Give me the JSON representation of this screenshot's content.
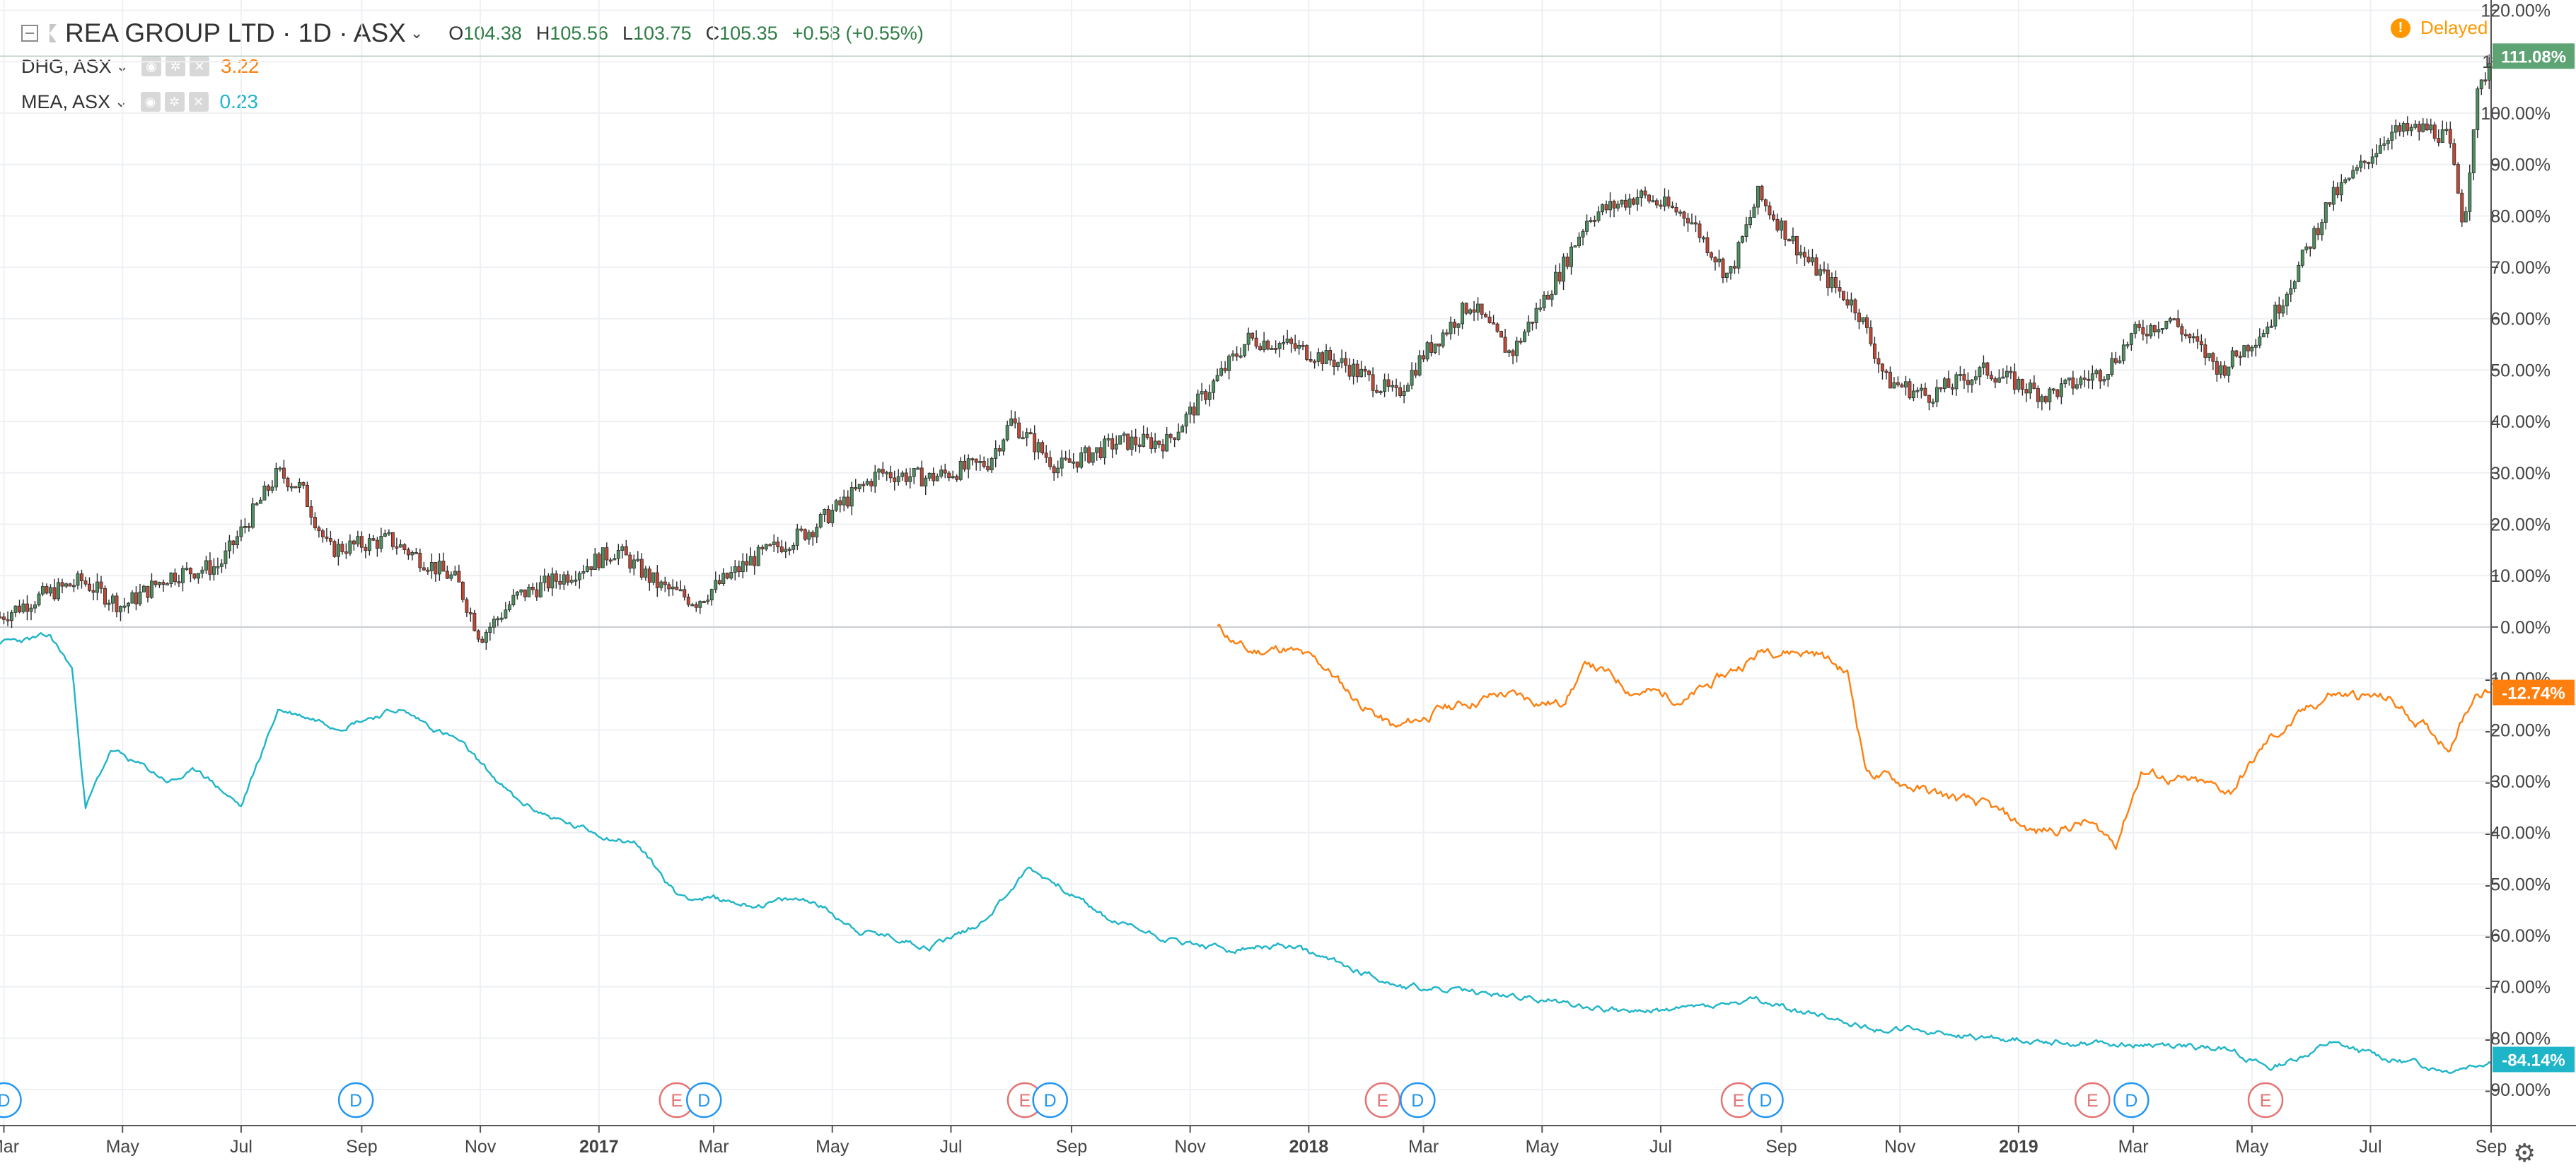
{
  "header": {
    "symbol_title": "REA GROUP LTD · 1D · ASX",
    "ohlc": {
      "o_label": "O",
      "o": "104.38",
      "h_label": "H",
      "h": "105.56",
      "l_label": "L",
      "l": "103.75",
      "c_label": "C",
      "c": "105.35",
      "change": "+0.58 (+0.55%)"
    },
    "compare": [
      {
        "label": "DHG, ASX",
        "value": "3.22",
        "color": "#ff7f0e"
      },
      {
        "label": "MEA, ASX",
        "value": "0.23",
        "color": "#1fb5c8"
      }
    ],
    "delayed_label": "Delayed",
    "delayed_icon_text": "!",
    "icons": [
      "collapse-icon",
      "flag-icon",
      "chevron-down-icon",
      "eye-icon",
      "gear-icon",
      "close-icon",
      "warning-icon"
    ]
  },
  "colors": {
    "up": "#4d8f5f",
    "down": "#c24735",
    "dhg": "#ff7f0e",
    "mea": "#1fb5c8",
    "axis_text": "#444444",
    "grid": "#eef0f3",
    "dividend": "#2196f3",
    "earnings": "#e57373",
    "rea_tag": "#5da373"
  },
  "chart_data": {
    "type": "line",
    "y_axis": {
      "range": [
        -97,
        122
      ],
      "unit": "%",
      "ticks": [
        "120.00%",
        "110.00%",
        "100.00%",
        "90.00%",
        "80.00%",
        "70.00%",
        "60.00%",
        "50.00%",
        "40.00%",
        "30.00%",
        "20.00%",
        "10.00%",
        "0.00%",
        "-10.00%",
        "-20.00%",
        "-30.00%",
        "-40.00%",
        "-50.00%",
        "-60.00%",
        "-70.00%",
        "-80.00%",
        "-90.00%"
      ]
    },
    "x_axis": {
      "range": [
        "2016-02-28",
        "2019-09-01"
      ],
      "ticks": [
        {
          "date": "2016-03-01",
          "label": "Mar"
        },
        {
          "date": "2016-05-01",
          "label": "May"
        },
        {
          "date": "2016-07-01",
          "label": "Jul"
        },
        {
          "date": "2016-09-01",
          "label": "Sep"
        },
        {
          "date": "2016-11-01",
          "label": "Nov"
        },
        {
          "date": "2017-01-01",
          "label": "2017"
        },
        {
          "date": "2017-03-01",
          "label": "Mar"
        },
        {
          "date": "2017-05-01",
          "label": "May"
        },
        {
          "date": "2017-07-01",
          "label": "Jul"
        },
        {
          "date": "2017-09-01",
          "label": "Sep"
        },
        {
          "date": "2017-11-01",
          "label": "Nov"
        },
        {
          "date": "2018-01-01",
          "label": "2018"
        },
        {
          "date": "2018-03-01",
          "label": "Mar"
        },
        {
          "date": "2018-05-01",
          "label": "May"
        },
        {
          "date": "2018-07-01",
          "label": "Jul"
        },
        {
          "date": "2018-09-01",
          "label": "Sep"
        },
        {
          "date": "2018-11-01",
          "label": "Nov"
        },
        {
          "date": "2019-01-01",
          "label": "2019"
        },
        {
          "date": "2019-03-01",
          "label": "Mar"
        },
        {
          "date": "2019-05-01",
          "label": "May"
        },
        {
          "date": "2019-07-01",
          "label": "Jul"
        },
        {
          "date": "2019-09-01",
          "label": "Sep"
        }
      ]
    },
    "series": [
      {
        "name": "REA GROUP LTD",
        "kind": "candlestick",
        "last_value_tag": "111.08%",
        "last_value": 111.08,
        "anchors": [
          [
            "2016-02-28",
            2
          ],
          [
            "2016-03-20",
            6
          ],
          [
            "2016-04-10",
            9
          ],
          [
            "2016-05-01",
            4
          ],
          [
            "2016-05-25",
            10
          ],
          [
            "2016-06-20",
            12
          ],
          [
            "2016-07-20",
            30
          ],
          [
            "2016-08-01",
            27
          ],
          [
            "2016-08-15",
            15
          ],
          [
            "2016-09-15",
            17
          ],
          [
            "2016-10-20",
            9
          ],
          [
            "2016-11-01",
            -2
          ],
          [
            "2016-11-20",
            6
          ],
          [
            "2016-12-15",
            10
          ],
          [
            "2017-01-10",
            15
          ],
          [
            "2017-02-01",
            8
          ],
          [
            "2017-02-20",
            5
          ],
          [
            "2017-03-20",
            13
          ],
          [
            "2017-04-20",
            19
          ],
          [
            "2017-05-25",
            30
          ],
          [
            "2017-06-20",
            29
          ],
          [
            "2017-07-20",
            32
          ],
          [
            "2017-08-01",
            40
          ],
          [
            "2017-08-25",
            31
          ],
          [
            "2017-09-25",
            36
          ],
          [
            "2017-10-20",
            36
          ],
          [
            "2017-11-10",
            46
          ],
          [
            "2017-12-01",
            56
          ],
          [
            "2017-12-20",
            55
          ],
          [
            "2018-01-20",
            51
          ],
          [
            "2018-02-15",
            45
          ],
          [
            "2018-03-01",
            53
          ],
          [
            "2018-03-25",
            63
          ],
          [
            "2018-04-15",
            53
          ],
          [
            "2018-05-10",
            69
          ],
          [
            "2018-05-25",
            80
          ],
          [
            "2018-06-20",
            84
          ],
          [
            "2018-07-15",
            80
          ],
          [
            "2018-08-05",
            68
          ],
          [
            "2018-08-20",
            84
          ],
          [
            "2018-09-15",
            71
          ],
          [
            "2018-10-10",
            62
          ],
          [
            "2018-10-25",
            48
          ],
          [
            "2018-11-15",
            45
          ],
          [
            "2018-12-15",
            50
          ],
          [
            "2019-01-15",
            45
          ],
          [
            "2019-02-15",
            50
          ],
          [
            "2019-03-01",
            57
          ],
          [
            "2019-03-20",
            60
          ],
          [
            "2019-04-15",
            50
          ],
          [
            "2019-05-10",
            59
          ],
          [
            "2019-05-25",
            70
          ],
          [
            "2019-06-10",
            83
          ],
          [
            "2019-06-25",
            89
          ],
          [
            "2019-07-10",
            96
          ],
          [
            "2019-07-31",
            97
          ],
          [
            "2019-08-10",
            95
          ],
          [
            "2019-08-18",
            78
          ],
          [
            "2019-08-24",
            102
          ],
          [
            "2019-09-01",
            111
          ]
        ],
        "volatility": 1.8,
        "seed": 7
      },
      {
        "name": "DHG, ASX",
        "kind": "line",
        "last_value_tag": "-12.74%",
        "last_value": -12.74,
        "points": [
          [
            "2017-11-15",
            0
          ],
          [
            "2017-12-01",
            -5
          ],
          [
            "2017-12-20",
            -4
          ],
          [
            "2018-01-10",
            -8
          ],
          [
            "2018-01-25",
            -14
          ],
          [
            "2018-02-15",
            -20
          ],
          [
            "2018-03-10",
            -16
          ],
          [
            "2018-04-10",
            -13
          ],
          [
            "2018-05-10",
            -15
          ],
          [
            "2018-05-25",
            -7
          ],
          [
            "2018-06-15",
            -12
          ],
          [
            "2018-07-15",
            -14
          ],
          [
            "2018-08-05",
            -9
          ],
          [
            "2018-08-25",
            -4
          ],
          [
            "2018-09-20",
            -5
          ],
          [
            "2018-10-05",
            -9
          ],
          [
            "2018-10-15",
            -28
          ],
          [
            "2018-11-15",
            -32
          ],
          [
            "2018-12-15",
            -35
          ],
          [
            "2019-01-10",
            -40
          ],
          [
            "2019-02-05",
            -38
          ],
          [
            "2019-02-20",
            -42
          ],
          [
            "2019-03-05",
            -28
          ],
          [
            "2019-03-25",
            -30
          ],
          [
            "2019-04-20",
            -32
          ],
          [
            "2019-05-10",
            -22
          ],
          [
            "2019-06-10",
            -13
          ],
          [
            "2019-07-10",
            -14
          ],
          [
            "2019-08-10",
            -23
          ],
          [
            "2019-08-25",
            -12
          ],
          [
            "2019-09-01",
            -12.74
          ]
        ],
        "volatility": 1.5,
        "seed": 11
      },
      {
        "name": "MEA, ASX",
        "kind": "line",
        "last_value_tag": "-84.14%",
        "last_value": -84.14,
        "points": [
          [
            "2016-02-28",
            -3
          ],
          [
            "2016-03-25",
            -2
          ],
          [
            "2016-04-05",
            -8
          ],
          [
            "2016-04-12",
            -35
          ],
          [
            "2016-04-25",
            -24
          ],
          [
            "2016-05-25",
            -30
          ],
          [
            "2016-06-10",
            -28
          ],
          [
            "2016-07-01",
            -35
          ],
          [
            "2016-07-20",
            -16
          ],
          [
            "2016-08-20",
            -19
          ],
          [
            "2016-09-20",
            -16
          ],
          [
            "2016-10-20",
            -22
          ],
          [
            "2016-11-20",
            -34
          ],
          [
            "2016-12-20",
            -39
          ],
          [
            "2017-01-20",
            -42
          ],
          [
            "2017-02-10",
            -52
          ],
          [
            "2017-03-20",
            -54
          ],
          [
            "2017-04-20",
            -53
          ],
          [
            "2017-05-15",
            -59
          ],
          [
            "2017-06-20",
            -62
          ],
          [
            "2017-07-15",
            -58
          ],
          [
            "2017-08-10",
            -47
          ],
          [
            "2017-08-25",
            -50
          ],
          [
            "2017-09-20",
            -57
          ],
          [
            "2017-10-25",
            -61
          ],
          [
            "2017-11-20",
            -63
          ],
          [
            "2017-12-20",
            -62
          ],
          [
            "2018-01-20",
            -66
          ],
          [
            "2018-02-20",
            -70
          ],
          [
            "2018-04-20",
            -72
          ],
          [
            "2018-06-20",
            -75
          ],
          [
            "2018-08-20",
            -73
          ],
          [
            "2018-10-20",
            -78
          ],
          [
            "2018-12-20",
            -80
          ],
          [
            "2019-02-20",
            -81
          ],
          [
            "2019-04-20",
            -82
          ],
          [
            "2019-05-10",
            -86
          ],
          [
            "2019-06-10",
            -81
          ],
          [
            "2019-07-10",
            -84
          ],
          [
            "2019-08-10",
            -86
          ],
          [
            "2019-09-01",
            -84.14
          ]
        ],
        "volatility": 0.9,
        "seed": 23
      }
    ],
    "events": [
      {
        "date": "2016-03-01",
        "type": "D"
      },
      {
        "date": "2016-08-29",
        "type": "D"
      },
      {
        "date": "2017-02-10",
        "type": "E"
      },
      {
        "date": "2017-02-24",
        "type": "D"
      },
      {
        "date": "2017-08-08",
        "type": "E"
      },
      {
        "date": "2017-08-21",
        "type": "D"
      },
      {
        "date": "2018-02-08",
        "type": "E"
      },
      {
        "date": "2018-02-26",
        "type": "D"
      },
      {
        "date": "2018-08-10",
        "type": "E"
      },
      {
        "date": "2018-08-24",
        "type": "D"
      },
      {
        "date": "2019-02-08",
        "type": "E"
      },
      {
        "date": "2019-02-28",
        "type": "D"
      },
      {
        "date": "2019-05-08",
        "type": "E"
      }
    ],
    "grid": true,
    "zero_line": true,
    "legend_position": "top-left"
  }
}
